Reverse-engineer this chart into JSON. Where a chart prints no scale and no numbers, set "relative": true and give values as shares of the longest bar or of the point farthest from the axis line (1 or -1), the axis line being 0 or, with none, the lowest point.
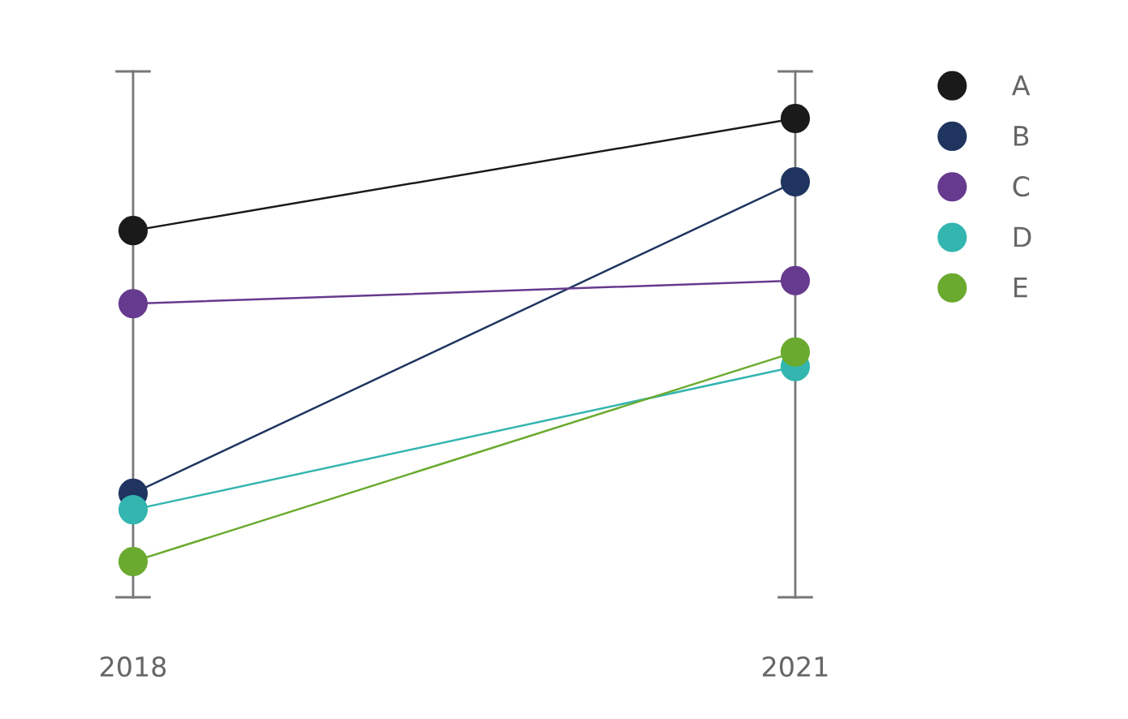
{
  "chart_data": {
    "type": "line",
    "relative": true,
    "categories": [
      "2018",
      "2021"
    ],
    "series": [
      {
        "name": "A",
        "color": "#1a1a1a",
        "values": [
          0.747,
          1
        ]
      },
      {
        "name": "B",
        "color": "#1f3560",
        "values": [
          0.154,
          0.857
        ]
      },
      {
        "name": "C",
        "color": "#663a8e",
        "values": [
          0.582,
          0.634
        ]
      },
      {
        "name": "D",
        "color": "#33b5b0",
        "values": [
          0.117,
          0.44
        ]
      },
      {
        "name": "E",
        "color": "#6aaa2e",
        "values": [
          0,
          0.473
        ]
      }
    ],
    "marker": "circle",
    "grid": "x",
    "legend": "right"
  }
}
